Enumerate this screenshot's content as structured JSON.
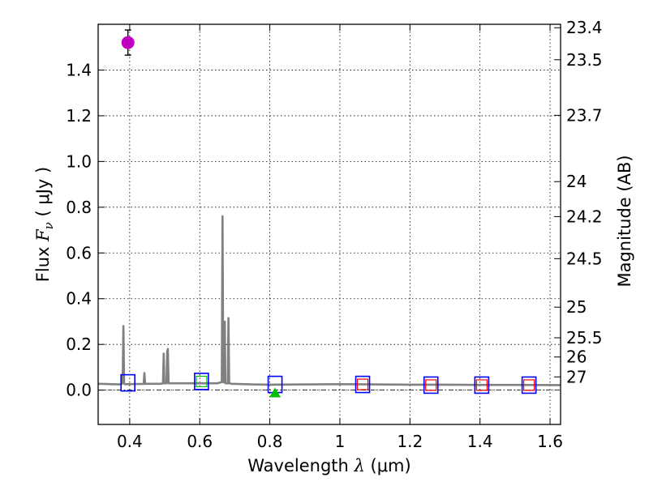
{
  "chart_data": {
    "type": "scatter",
    "title": "",
    "xlabel": {
      "pre": "Wavelength  ",
      "sym": "λ",
      "post": " (μm)"
    },
    "ylabel": {
      "pre": "Flux  ",
      "sym": "F",
      "sub": "ν",
      "post": "  ( μJy )"
    },
    "ylabel_right": "Magnitude (AB)",
    "xlim": [
      0.31,
      1.63
    ],
    "ylim": [
      -0.15,
      1.6
    ],
    "grid": true,
    "x_ticks": [
      0.4,
      0.6,
      0.8,
      1.0,
      1.2,
      1.4,
      1.6
    ],
    "x_tick_labels": [
      "0.4",
      "0.6",
      "0.8",
      "1",
      "1.2",
      "1.4",
      "1.6"
    ],
    "y_ticks": [
      0.0,
      0.2,
      0.4,
      0.6,
      0.8,
      1.0,
      1.2,
      1.4
    ],
    "y_tick_labels": [
      "0.0",
      "0.2",
      "0.4",
      "0.6",
      "0.8",
      "1.0",
      "1.2",
      "1.4"
    ],
    "mag_ticks": [
      {
        "flux": 1.585,
        "label": "23.4"
      },
      {
        "flux": 1.445,
        "label": "23.5"
      },
      {
        "flux": 1.202,
        "label": "23.7"
      },
      {
        "flux": 0.912,
        "label": "24"
      },
      {
        "flux": 0.759,
        "label": "24.2"
      },
      {
        "flux": 0.575,
        "label": "24.5"
      },
      {
        "flux": 0.363,
        "label": "25"
      },
      {
        "flux": 0.229,
        "label": "25.5"
      },
      {
        "flux": 0.145,
        "label": "26"
      },
      {
        "flux": 0.058,
        "label": "27"
      }
    ],
    "zero_line": 0.0,
    "series": [
      {
        "name": "model-spectrum",
        "kind": "line",
        "color": "#808080",
        "x": [
          0.31,
          0.35,
          0.375,
          0.38,
          0.382,
          0.384,
          0.386,
          0.39,
          0.43,
          0.44,
          0.442,
          0.444,
          0.448,
          0.49,
          0.495,
          0.497,
          0.499,
          0.501,
          0.505,
          0.507,
          0.509,
          0.511,
          0.515,
          0.65,
          0.663,
          0.665,
          0.667,
          0.669,
          0.6715,
          0.673,
          0.6745,
          0.677,
          0.68,
          0.682,
          0.684,
          0.686,
          0.69,
          0.75,
          0.8,
          0.9,
          1.0,
          1.1,
          1.2,
          1.3,
          1.4,
          1.5,
          1.63
        ],
        "y": [
          0.028,
          0.026,
          0.025,
          0.03,
          0.28,
          0.03,
          0.026,
          0.026,
          0.027,
          0.027,
          0.075,
          0.027,
          0.028,
          0.028,
          0.03,
          0.16,
          0.03,
          0.03,
          0.03,
          0.17,
          0.18,
          0.03,
          0.03,
          0.03,
          0.035,
          0.76,
          0.035,
          0.035,
          0.3,
          0.03,
          0.03,
          0.03,
          0.03,
          0.315,
          0.03,
          0.03,
          0.028,
          0.025,
          0.024,
          0.025,
          0.026,
          0.025,
          0.024,
          0.024,
          0.023,
          0.023,
          0.022
        ]
      },
      {
        "name": "observed-detection",
        "kind": "circle",
        "color": "#bf00bf",
        "points": [
          {
            "x": 0.395,
            "y": 1.52,
            "err": 0.055
          }
        ]
      },
      {
        "name": "model-photometry",
        "kind": "square",
        "color": "#0000ff",
        "points": [
          {
            "x": 0.395,
            "y": 0.032
          },
          {
            "x": 0.605,
            "y": 0.038
          },
          {
            "x": 0.815,
            "y": 0.025
          },
          {
            "x": 1.065,
            "y": 0.025
          },
          {
            "x": 1.26,
            "y": 0.022
          },
          {
            "x": 1.405,
            "y": 0.022
          },
          {
            "x": 1.54,
            "y": 0.022
          }
        ]
      },
      {
        "name": "observed-photometry",
        "kind": "small-square",
        "color": "#ff0000",
        "points": [
          {
            "x": 1.065,
            "y": 0.025
          },
          {
            "x": 1.26,
            "y": 0.022
          },
          {
            "x": 1.405,
            "y": 0.022
          },
          {
            "x": 1.54,
            "y": 0.022
          }
        ]
      },
      {
        "name": "upper-limit",
        "kind": "small-square",
        "color": "#00bf00",
        "points": [
          {
            "x": 0.605,
            "y": 0.038
          }
        ]
      },
      {
        "name": "non-detection",
        "kind": "triangle",
        "color": "#00bf00",
        "points": [
          {
            "x": 0.815,
            "y": -0.01,
            "err": 0.012
          }
        ]
      }
    ]
  }
}
